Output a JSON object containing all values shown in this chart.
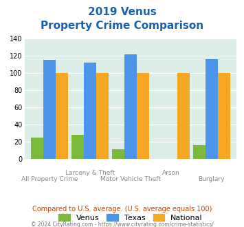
{
  "title_line1": "2019 Venus",
  "title_line2": "Property Crime Comparison",
  "categories": [
    "All Property Crime",
    "Larceny & Theft",
    "Motor Vehicle Theft",
    "Arson",
    "Burglary"
  ],
  "x_labels_line1": [
    "",
    "Larceny & Theft",
    "",
    "Arson",
    ""
  ],
  "x_labels_line2": [
    "All Property Crime",
    "",
    "Motor Vehicle Theft",
    "",
    "Burglary"
  ],
  "venus": [
    25,
    28,
    11,
    0,
    16
  ],
  "texas": [
    115,
    112,
    122,
    0,
    116
  ],
  "national": [
    100,
    100,
    100,
    100,
    100
  ],
  "venus_color": "#7cba3c",
  "texas_color": "#4d94eb",
  "national_color": "#f5a623",
  "bg_color": "#ddeee8",
  "title_color": "#1a5fa8",
  "xlabel_color": "#888888",
  "subtitle_color": "#cc4400",
  "footer_color": "#777777",
  "ylim": [
    0,
    140
  ],
  "yticks": [
    0,
    20,
    40,
    60,
    80,
    100,
    120,
    140
  ],
  "subtitle_text": "Compared to U.S. average. (U.S. average equals 100)",
  "footer_text": "© 2024 CityRating.com - https://www.cityrating.com/crime-statistics/",
  "legend_labels": [
    "Venus",
    "Texas",
    "National"
  ]
}
